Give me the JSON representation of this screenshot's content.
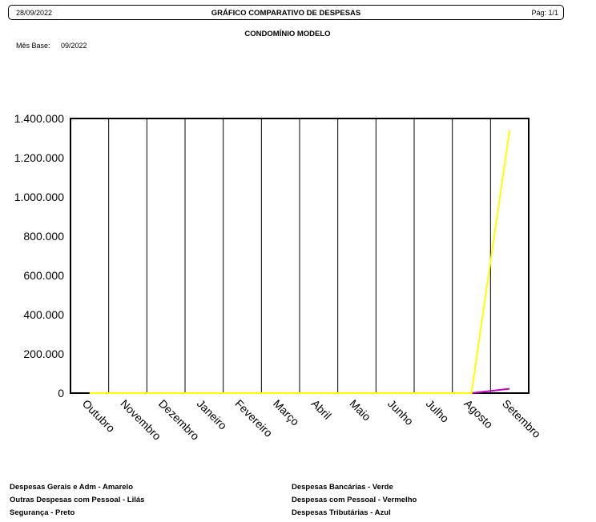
{
  "header": {
    "date": "28/09/2022",
    "title": "GRÁFICO COMPARATIVO DE DESPESAS",
    "page": "Pág: 1/1"
  },
  "subtitle": "CONDOMÍNIO MODELO",
  "base": {
    "label": "Mês Base:",
    "value": "09/2022"
  },
  "chart_data": {
    "type": "line",
    "categories": [
      "Outubro",
      "Novembro",
      "Dezembro",
      "Janeiro",
      "Fevereiro",
      "Março",
      "Abril",
      "Maio",
      "Junho",
      "Julho",
      "Agosto",
      "Setembro"
    ],
    "ylim": [
      0,
      1400000
    ],
    "yticks": [
      0,
      200000,
      400000,
      600000,
      800000,
      1000000,
      1200000,
      1400000
    ],
    "ytick_labels": [
      "0",
      "200.000",
      "400.000",
      "600.000",
      "800.000",
      "1.000.000",
      "1.200.000",
      "1.400.000"
    ],
    "vertical_grid": true,
    "legend_position": "bottom",
    "series": [
      {
        "name": "Despesas Gerais e Adm - Amarelo",
        "color": "#ffff00",
        "values": [
          0,
          0,
          0,
          0,
          0,
          0,
          0,
          0,
          0,
          0,
          0,
          1340000
        ]
      },
      {
        "name": "Outras Despesas com Pessoal - Lilás",
        "color": "#cc00cc",
        "values": [
          0,
          0,
          0,
          0,
          0,
          0,
          0,
          0,
          0,
          0,
          0,
          22000
        ]
      },
      {
        "name": "Segurança - Preto",
        "color": "#000000",
        "values": [
          0,
          0,
          0,
          0,
          0,
          0,
          0,
          0,
          0,
          0,
          0,
          0
        ]
      },
      {
        "name": "Despesas Bancárias - Verde",
        "color": "#00aa00",
        "values": [
          0,
          0,
          0,
          0,
          0,
          0,
          0,
          0,
          0,
          0,
          0,
          0
        ]
      },
      {
        "name": "Despesas com Pessoal - Vermelho",
        "color": "#ff0000",
        "values": [
          0,
          0,
          0,
          0,
          0,
          0,
          0,
          0,
          0,
          0,
          0,
          0
        ]
      },
      {
        "name": "Despesas Tributárias - Azul",
        "color": "#0000ff",
        "values": [
          0,
          0,
          0,
          0,
          0,
          0,
          0,
          0,
          0,
          0,
          0,
          0
        ]
      }
    ]
  }
}
